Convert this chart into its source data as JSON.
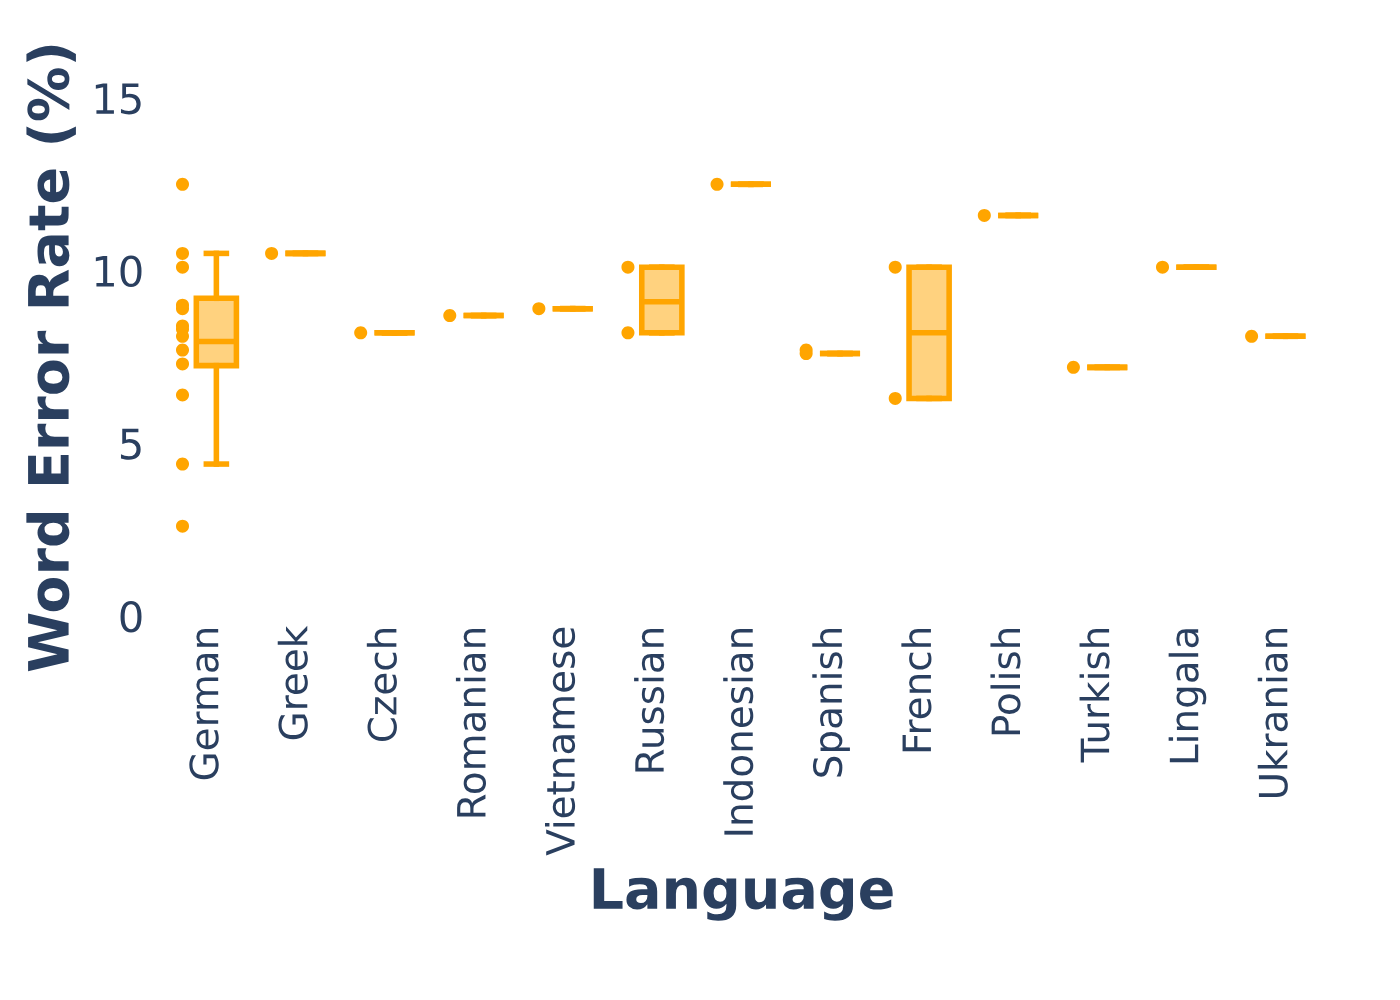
{
  "chart_data": {
    "type": "box",
    "xlabel": "Language",
    "ylabel": "Word Error Rate (%)",
    "categories": [
      "German",
      "Greek",
      "Czech",
      "Romanian",
      "Vietnamese",
      "Russian",
      "Indonesian",
      "Spanish",
      "French",
      "Polish",
      "Turkish",
      "Lingala",
      "Ukranian"
    ],
    "color": "#ffa500",
    "boxes": [
      {
        "low": 4.4,
        "q1": 7.25,
        "median": 7.95,
        "q3": 9.2,
        "high": 10.5
      },
      {
        "low": 10.5,
        "q1": 10.5,
        "median": 10.5,
        "q3": 10.5,
        "high": 10.5
      },
      {
        "low": 8.2,
        "q1": 8.2,
        "median": 8.2,
        "q3": 8.2,
        "high": 8.2
      },
      {
        "low": 8.7,
        "q1": 8.7,
        "median": 8.7,
        "q3": 8.7,
        "high": 8.7
      },
      {
        "low": 8.9,
        "q1": 8.9,
        "median": 8.9,
        "q3": 8.9,
        "high": 8.9
      },
      {
        "low": 8.2,
        "q1": 8.2,
        "median": 9.1,
        "q3": 10.1,
        "high": 10.1
      },
      {
        "low": 12.5,
        "q1": 12.5,
        "median": 12.5,
        "q3": 12.5,
        "high": 12.5
      },
      {
        "low": 7.6,
        "q1": 7.6,
        "median": 7.6,
        "q3": 7.6,
        "high": 7.6
      },
      {
        "low": 6.3,
        "q1": 6.3,
        "median": 8.2,
        "q3": 10.1,
        "high": 10.1
      },
      {
        "low": 11.6,
        "q1": 11.6,
        "median": 11.6,
        "q3": 11.6,
        "high": 11.6
      },
      {
        "low": 7.2,
        "q1": 7.2,
        "median": 7.2,
        "q3": 7.2,
        "high": 7.2
      },
      {
        "low": 10.1,
        "q1": 10.1,
        "median": 10.1,
        "q3": 10.1,
        "high": 10.1
      },
      {
        "low": 8.1,
        "q1": 8.1,
        "median": 8.1,
        "q3": 8.1,
        "high": 8.1
      }
    ],
    "series": [
      {
        "type": "scatter",
        "color": "#ffa500",
        "x": [
          "German",
          "German",
          "German",
          "German",
          "German",
          "German",
          "German",
          "German",
          "German",
          "German",
          "German",
          "German",
          "German",
          "Greek",
          "Czech",
          "Romanian",
          "Vietnamese",
          "Russian",
          "Russian",
          "Indonesian",
          "Spanish",
          "Spanish",
          "French",
          "French",
          "Polish",
          "Turkish",
          "Lingala",
          "Ukranian"
        ],
        "values": [
          12.5,
          10.5,
          10.1,
          9.0,
          8.9,
          8.4,
          8.3,
          8.1,
          7.7,
          7.3,
          6.4,
          4.4,
          2.6,
          10.5,
          8.2,
          8.7,
          8.9,
          10.1,
          8.2,
          12.5,
          7.7,
          7.6,
          10.1,
          6.3,
          11.6,
          7.2,
          10.1,
          8.1
        ]
      }
    ],
    "ylim": [
      0,
      15
    ],
    "yticks": [
      0,
      5,
      10,
      15
    ],
    "grid": false,
    "legend": false
  }
}
